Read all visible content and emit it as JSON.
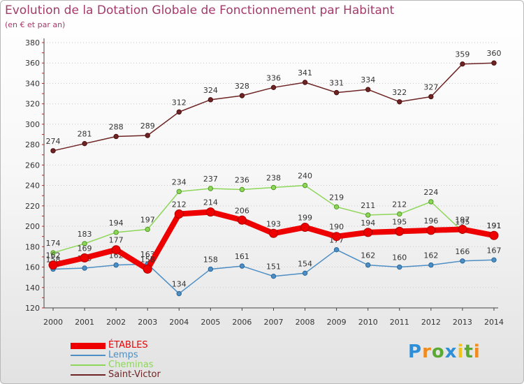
{
  "title": "Evolution de la Dotation Globale de Fonctionnement par Habitant",
  "subtitle": "(en € et par an)",
  "logo": {
    "letters": [
      "P",
      "r",
      "o",
      "x",
      "i",
      "t",
      "i"
    ],
    "colors": [
      "#2e8fd8",
      "#f28a1c",
      "#5aaa32",
      "#2e8fd8",
      "#f2c21c",
      "#5aaa32",
      "#f28a1c"
    ]
  },
  "chart_data": {
    "type": "line",
    "x": [
      2000,
      2001,
      2002,
      2003,
      2004,
      2005,
      2006,
      2007,
      2008,
      2009,
      2010,
      2011,
      2012,
      2013,
      2014
    ],
    "ylim": [
      120,
      380
    ],
    "yticks": [
      120,
      140,
      160,
      180,
      200,
      220,
      240,
      260,
      280,
      300,
      320,
      340,
      360,
      380
    ],
    "grid": "horizontal-dotted",
    "legend_position": "bottom-left",
    "series": [
      {
        "name": "Saint-Victor",
        "color": "#6e2424",
        "values": [
          274,
          281,
          288,
          289,
          312,
          324,
          328,
          336,
          341,
          331,
          334,
          322,
          327,
          359,
          360
        ],
        "labels": [
          "274",
          "281",
          "288",
          "289",
          "312",
          "324",
          "328",
          "336",
          "341",
          "331",
          "334",
          "322",
          "327",
          "359",
          "360"
        ]
      },
      {
        "name": "Cheminas",
        "color": "#8ed65a",
        "values": [
          174,
          183,
          194,
          197,
          234,
          237,
          236,
          238,
          240,
          219,
          211,
          212,
          224,
          195,
          191
        ],
        "labels": [
          "174",
          "183",
          "194",
          "197",
          "234",
          "237",
          "236",
          "238",
          "240",
          "219",
          "211",
          "212",
          "224",
          "195",
          "191"
        ]
      },
      {
        "name": "Lemps",
        "color": "#4d8ec4",
        "values": [
          158,
          159,
          162,
          163,
          134,
          158,
          161,
          151,
          154,
          177,
          162,
          160,
          162,
          166,
          167
        ],
        "labels": [
          "158",
          "159",
          "162",
          "163",
          "134",
          "158",
          "161",
          "151",
          "154",
          "177",
          "162",
          "160",
          "162",
          "166",
          "167"
        ]
      },
      {
        "name": "ÉTABLES",
        "color": "#ee0000",
        "values": [
          162,
          169,
          177,
          158,
          212,
          214,
          206,
          193,
          199,
          190,
          194,
          195,
          196,
          197,
          191
        ],
        "labels": [
          "162",
          "169",
          "177",
          "158",
          "212",
          "214",
          "206",
          "193",
          "199",
          "190",
          "194",
          "195",
          "196",
          "197",
          "191"
        ]
      }
    ]
  },
  "legend": [
    {
      "label": "ÉTABLES",
      "color": "#ee0000",
      "thickness": 9
    },
    {
      "label": "Lemps",
      "color": "#4d8ec4",
      "thickness": 2
    },
    {
      "label": "Cheminas",
      "color": "#8ed65a",
      "thickness": 2
    },
    {
      "label": "Saint-Victor",
      "color": "#6e2424",
      "thickness": 2
    }
  ]
}
